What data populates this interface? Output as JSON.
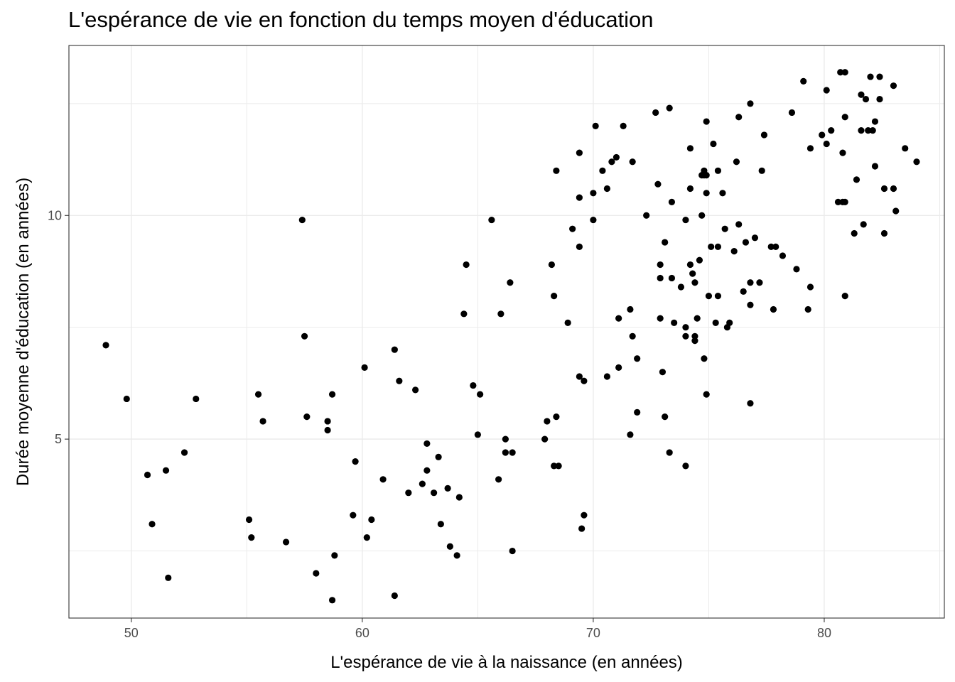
{
  "chart_data": {
    "type": "scatter",
    "title": "L'espérance de vie en fonction du temps moyen d'éducation",
    "xlabel": "L'espérance de vie à la naissance (en années)",
    "ylabel": "Durée moyenne d'éducation (en années)",
    "xlim": [
      47.3,
      85.2
    ],
    "ylim": [
      1.0,
      13.8
    ],
    "x_ticks": [
      50,
      60,
      70,
      80
    ],
    "y_ticks": [
      5,
      10
    ],
    "grid": true,
    "legend": "none",
    "point_color": "#000000",
    "points": [
      [
        48.9,
        7.1
      ],
      [
        49.8,
        5.9
      ],
      [
        50.7,
        4.2
      ],
      [
        50.9,
        3.1
      ],
      [
        51.5,
        4.3
      ],
      [
        51.6,
        1.9
      ],
      [
        52.3,
        4.7
      ],
      [
        52.8,
        5.9
      ],
      [
        55.1,
        3.2
      ],
      [
        55.2,
        2.8
      ],
      [
        55.5,
        6.0
      ],
      [
        55.7,
        5.4
      ],
      [
        56.7,
        2.7
      ],
      [
        57.4,
        9.9
      ],
      [
        57.5,
        7.3
      ],
      [
        57.6,
        5.5
      ],
      [
        58.0,
        2.0
      ],
      [
        58.5,
        5.4
      ],
      [
        58.5,
        5.2
      ],
      [
        58.7,
        6.0
      ],
      [
        58.7,
        1.4
      ],
      [
        58.8,
        2.4
      ],
      [
        59.6,
        3.3
      ],
      [
        59.7,
        4.5
      ],
      [
        60.1,
        6.6
      ],
      [
        60.2,
        2.8
      ],
      [
        60.4,
        3.2
      ],
      [
        60.9,
        4.1
      ],
      [
        61.4,
        7.0
      ],
      [
        61.4,
        1.5
      ],
      [
        61.6,
        6.3
      ],
      [
        62.0,
        3.8
      ],
      [
        62.3,
        6.1
      ],
      [
        62.6,
        4.0
      ],
      [
        62.8,
        4.9
      ],
      [
        62.8,
        4.3
      ],
      [
        63.1,
        3.8
      ],
      [
        63.3,
        4.6
      ],
      [
        63.4,
        3.1
      ],
      [
        63.7,
        3.9
      ],
      [
        63.8,
        2.6
      ],
      [
        64.1,
        2.4
      ],
      [
        64.2,
        3.7
      ],
      [
        64.4,
        7.8
      ],
      [
        64.5,
        8.9
      ],
      [
        64.8,
        6.2
      ],
      [
        65.0,
        5.1
      ],
      [
        65.1,
        6.0
      ],
      [
        65.6,
        9.9
      ],
      [
        65.9,
        4.1
      ],
      [
        66.0,
        7.8
      ],
      [
        66.2,
        5.0
      ],
      [
        66.2,
        4.7
      ],
      [
        66.4,
        8.5
      ],
      [
        66.5,
        4.7
      ],
      [
        66.5,
        2.5
      ],
      [
        67.9,
        5.0
      ],
      [
        68.0,
        5.4
      ],
      [
        68.2,
        8.9
      ],
      [
        68.3,
        8.2
      ],
      [
        68.3,
        4.4
      ],
      [
        68.4,
        11.0
      ],
      [
        68.4,
        5.5
      ],
      [
        68.5,
        4.4
      ],
      [
        68.9,
        7.6
      ],
      [
        69.1,
        9.7
      ],
      [
        69.4,
        11.4
      ],
      [
        69.4,
        10.4
      ],
      [
        69.4,
        9.3
      ],
      [
        69.4,
        6.4
      ],
      [
        69.5,
        3.0
      ],
      [
        69.6,
        3.3
      ],
      [
        69.6,
        6.3
      ],
      [
        70.0,
        10.5
      ],
      [
        70.0,
        9.9
      ],
      [
        70.1,
        12.0
      ],
      [
        70.4,
        11.0
      ],
      [
        70.6,
        6.4
      ],
      [
        70.6,
        10.6
      ],
      [
        70.8,
        11.2
      ],
      [
        71.0,
        11.3
      ],
      [
        71.1,
        6.6
      ],
      [
        71.1,
        7.7
      ],
      [
        71.3,
        12.0
      ],
      [
        71.6,
        7.9
      ],
      [
        71.6,
        5.1
      ],
      [
        71.7,
        7.3
      ],
      [
        71.7,
        11.2
      ],
      [
        71.9,
        6.8
      ],
      [
        71.9,
        5.6
      ],
      [
        72.3,
        10.0
      ],
      [
        72.7,
        12.3
      ],
      [
        72.8,
        10.7
      ],
      [
        72.9,
        8.6
      ],
      [
        72.9,
        8.9
      ],
      [
        72.9,
        7.7
      ],
      [
        73.0,
        6.5
      ],
      [
        73.1,
        5.5
      ],
      [
        73.1,
        9.4
      ],
      [
        73.3,
        12.4
      ],
      [
        73.3,
        4.7
      ],
      [
        73.4,
        8.6
      ],
      [
        73.4,
        10.3
      ],
      [
        73.5,
        7.6
      ],
      [
        73.8,
        8.4
      ],
      [
        74.0,
        9.9
      ],
      [
        74.0,
        7.5
      ],
      [
        74.0,
        7.3
      ],
      [
        74.0,
        4.4
      ],
      [
        74.2,
        11.5
      ],
      [
        74.2,
        8.9
      ],
      [
        74.2,
        10.6
      ],
      [
        74.3,
        8.7
      ],
      [
        74.4,
        8.5
      ],
      [
        74.4,
        7.3
      ],
      [
        74.4,
        7.2
      ],
      [
        74.5,
        7.7
      ],
      [
        74.6,
        9.0
      ],
      [
        74.7,
        10.0
      ],
      [
        74.7,
        10.9
      ],
      [
        74.8,
        10.9
      ],
      [
        74.8,
        11.0
      ],
      [
        74.8,
        6.8
      ],
      [
        74.9,
        12.1
      ],
      [
        74.9,
        6.0
      ],
      [
        74.9,
        10.9
      ],
      [
        74.9,
        10.5
      ],
      [
        75.0,
        8.2
      ],
      [
        75.1,
        9.3
      ],
      [
        75.2,
        11.6
      ],
      [
        75.3,
        7.6
      ],
      [
        75.4,
        8.2
      ],
      [
        75.4,
        9.3
      ],
      [
        75.4,
        11.0
      ],
      [
        75.6,
        10.5
      ],
      [
        75.7,
        9.7
      ],
      [
        75.8,
        7.5
      ],
      [
        75.9,
        7.6
      ],
      [
        76.1,
        9.2
      ],
      [
        76.2,
        11.2
      ],
      [
        76.3,
        9.8
      ],
      [
        76.3,
        12.2
      ],
      [
        76.5,
        8.3
      ],
      [
        76.6,
        9.4
      ],
      [
        76.8,
        12.5
      ],
      [
        76.8,
        8.0
      ],
      [
        76.8,
        8.5
      ],
      [
        76.8,
        5.8
      ],
      [
        77.0,
        9.5
      ],
      [
        77.2,
        8.5
      ],
      [
        77.3,
        11.0
      ],
      [
        77.4,
        11.8
      ],
      [
        77.7,
        9.3
      ],
      [
        77.8,
        7.9
      ],
      [
        77.9,
        9.3
      ],
      [
        78.2,
        9.1
      ],
      [
        78.6,
        12.3
      ],
      [
        78.8,
        8.8
      ],
      [
        79.1,
        13.0
      ],
      [
        79.3,
        7.9
      ],
      [
        79.4,
        8.4
      ],
      [
        79.4,
        11.5
      ],
      [
        79.9,
        11.8
      ],
      [
        80.1,
        11.6
      ],
      [
        80.1,
        12.8
      ],
      [
        80.3,
        11.9
      ],
      [
        80.6,
        10.3
      ],
      [
        80.7,
        13.2
      ],
      [
        80.8,
        11.4
      ],
      [
        80.8,
        10.3
      ],
      [
        80.9,
        13.2
      ],
      [
        80.9,
        8.2
      ],
      [
        80.9,
        10.3
      ],
      [
        80.9,
        12.2
      ],
      [
        81.3,
        9.6
      ],
      [
        81.4,
        10.8
      ],
      [
        81.6,
        12.7
      ],
      [
        81.6,
        11.9
      ],
      [
        81.7,
        9.8
      ],
      [
        81.8,
        12.6
      ],
      [
        81.9,
        11.9
      ],
      [
        82.0,
        13.1
      ],
      [
        82.1,
        11.9
      ],
      [
        82.2,
        12.1
      ],
      [
        82.2,
        11.1
      ],
      [
        82.4,
        12.6
      ],
      [
        82.4,
        13.1
      ],
      [
        82.6,
        10.6
      ],
      [
        82.6,
        9.6
      ],
      [
        83.0,
        12.9
      ],
      [
        83.0,
        10.6
      ],
      [
        83.1,
        10.1
      ],
      [
        83.5,
        11.5
      ],
      [
        84.0,
        11.2
      ]
    ]
  }
}
